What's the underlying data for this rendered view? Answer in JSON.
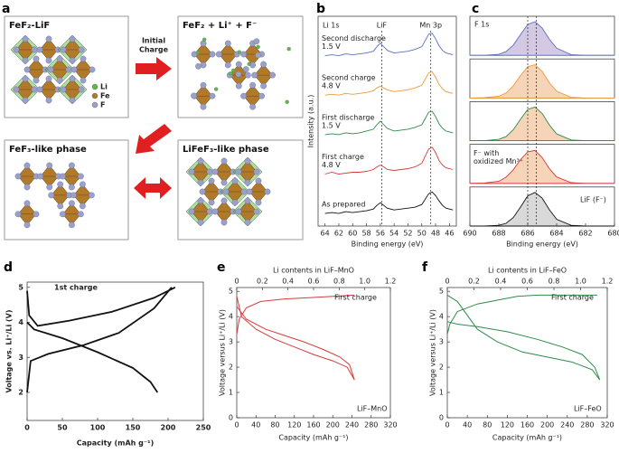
{
  "labels": [
    "a",
    "b",
    "c",
    "d",
    "e",
    "f"
  ],
  "panel_a": {
    "titles": [
      "FeF₂-LiF",
      "FeF₂ + Li⁺ + F⁻",
      "FeF₃-like phase",
      "LiFeF₃-like phase"
    ],
    "arrow_label": [
      "Initial",
      "Charge"
    ],
    "legend": [
      {
        "label": "Li",
        "color": "#5fb84a"
      },
      {
        "label": "Fe",
        "color": "#b07a2a"
      },
      {
        "label": "F",
        "color": "#9aa0c8"
      }
    ]
  },
  "chart_data": [
    {
      "type": "spectra",
      "title": "Li 1s",
      "xlabel": "Binding energy (eV)",
      "ylabel": "Intensity (a.u.)",
      "xlim": [
        65,
        45
      ],
      "xticks": [
        64,
        62,
        60,
        58,
        56,
        54,
        52,
        50,
        48,
        46
      ],
      "ylim": [
        0.3,
        12
      ],
      "annotations": [
        {
          "text": "LiF",
          "x": 55.8
        },
        {
          "text": "Mn 3p",
          "x": 48.7
        }
      ],
      "x": [
        64,
        63,
        62,
        61,
        60,
        59,
        58,
        57,
        56.5,
        56,
        55.5,
        55,
        54,
        53,
        52,
        51,
        50,
        49.5,
        49,
        48.5,
        48,
        47.5,
        47,
        46.5,
        46,
        45.5
      ],
      "series": [
        {
          "name": "As prepared",
          "color": "#111111",
          "values": [
            1.0,
            1.05,
            1.0,
            1.1,
            1.05,
            1.1,
            1.15,
            1.25,
            1.45,
            1.6,
            1.45,
            1.3,
            1.2,
            1.25,
            1.3,
            1.35,
            1.5,
            1.8,
            2.1,
            2.2,
            2.0,
            1.7,
            1.45,
            1.3,
            1.25,
            1.2
          ]
        },
        {
          "name": "First charge",
          "voltage": "4.8 V",
          "color": "#d83a3a",
          "values": [
            3.2,
            3.3,
            3.2,
            3.25,
            3.3,
            3.3,
            3.35,
            3.45,
            3.6,
            3.7,
            3.6,
            3.45,
            3.4,
            3.45,
            3.5,
            3.6,
            3.8,
            4.2,
            4.6,
            4.7,
            4.4,
            3.95,
            3.7,
            3.55,
            3.5,
            3.45
          ]
        },
        {
          "name": "First discharge",
          "voltage": "1.5 V",
          "color": "#2e8b4a",
          "values": [
            5.4,
            5.45,
            5.4,
            5.5,
            5.45,
            5.5,
            5.6,
            5.7,
            5.95,
            6.15,
            5.95,
            5.75,
            5.6,
            5.65,
            5.7,
            5.8,
            5.95,
            6.3,
            6.65,
            6.7,
            6.4,
            6.0,
            5.75,
            5.6,
            5.55,
            5.5
          ]
        },
        {
          "name": "Second charge",
          "voltage": "4.8 V",
          "color": "#ef9a3c",
          "values": [
            7.6,
            7.65,
            7.6,
            7.7,
            7.65,
            7.7,
            7.75,
            7.85,
            8.0,
            8.1,
            8.0,
            7.9,
            7.8,
            7.85,
            7.9,
            8.0,
            8.15,
            8.5,
            8.85,
            8.9,
            8.6,
            8.2,
            7.95,
            7.8,
            7.75,
            7.7
          ]
        },
        {
          "name": "Second discharge",
          "voltage": "1.5 V",
          "color": "#5a6fc0",
          "values": [
            9.8,
            9.85,
            9.8,
            9.9,
            9.85,
            9.9,
            9.95,
            10.05,
            10.3,
            10.5,
            10.3,
            10.1,
            9.95,
            10.0,
            10.05,
            10.15,
            10.3,
            10.65,
            11.0,
            11.05,
            10.75,
            10.35,
            10.1,
            9.95,
            9.9,
            9.85
          ]
        }
      ]
    },
    {
      "type": "peaks",
      "title": "F 1s",
      "xlabel": "Binding energy (eV)",
      "xlim": [
        690,
        680
      ],
      "xticks": [
        690,
        688,
        686,
        684,
        682,
        680
      ],
      "ylim": [
        0,
        1.15
      ],
      "guides": [
        686.0,
        685.4
      ],
      "annotations": [
        [
          "F⁻ with",
          "oxidized Mn³⁺"
        ],
        [
          "LiF (F⁻)"
        ]
      ],
      "x": [
        690,
        689,
        688,
        687.5,
        687,
        686.5,
        686,
        685.5,
        685,
        684.5,
        684,
        683,
        682,
        681,
        680
      ],
      "series": [
        {
          "color": "#5a6fc0",
          "fill": "#d3c9e2",
          "values": [
            0,
            0,
            0.03,
            0.11,
            0.3,
            0.61,
            0.91,
            0.99,
            0.8,
            0.47,
            0.21,
            0.02,
            0,
            0,
            0
          ]
        },
        {
          "color": "#ef9a3c",
          "fill": "#f6d4b8",
          "values": [
            0,
            0.01,
            0.05,
            0.15,
            0.36,
            0.66,
            0.92,
            0.98,
            0.78,
            0.45,
            0.2,
            0.02,
            0,
            0,
            0
          ]
        },
        {
          "color": "#2e8b4a",
          "fill": "#f6d4b8",
          "values": [
            0,
            0,
            0.04,
            0.12,
            0.32,
            0.63,
            0.92,
            0.99,
            0.8,
            0.46,
            0.2,
            0.02,
            0,
            0,
            0
          ]
        },
        {
          "color": "#d83a3a",
          "fill": "#f6d4b8",
          "values": [
            0,
            0.01,
            0.06,
            0.18,
            0.4,
            0.7,
            0.93,
            0.97,
            0.76,
            0.43,
            0.19,
            0.02,
            0,
            0,
            0
          ]
        },
        {
          "color": "#111111",
          "fill": "#d9d9d9",
          "values": [
            0,
            0,
            0.02,
            0.08,
            0.25,
            0.56,
            0.89,
            0.99,
            0.82,
            0.48,
            0.2,
            0.02,
            0,
            0,
            0
          ]
        }
      ]
    },
    {
      "type": "line",
      "xlabel": "Capacity (mAh g⁻¹)",
      "ylabel": "Voltage vs. Li⁺/Li (V)",
      "xlim": [
        0,
        250
      ],
      "xticks": [
        0,
        50,
        100,
        150,
        200,
        250
      ],
      "ylim": [
        1.2,
        5.15
      ],
      "yticks": [
        2,
        3,
        4,
        5
      ],
      "annotations": [
        "1st charge"
      ],
      "series": [
        {
          "color": "#111111",
          "x": [
            0,
            3,
            15,
            60,
            120,
            180,
            210
          ],
          "values": [
            4.9,
            4.2,
            3.9,
            4.05,
            4.3,
            4.7,
            5.0
          ]
        },
        {
          "color": "#111111",
          "x": [
            0,
            10,
            50,
            100,
            150,
            175,
            185
          ],
          "values": [
            4.0,
            3.8,
            3.55,
            3.15,
            2.7,
            2.3,
            2.0
          ]
        },
        {
          "color": "#111111",
          "x": [
            0,
            5,
            30,
            80,
            130,
            180,
            205
          ],
          "values": [
            2.0,
            2.9,
            3.1,
            3.35,
            3.7,
            4.4,
            5.0
          ]
        }
      ]
    },
    {
      "type": "line",
      "xlabel": "Capacity (mAh g⁻¹)",
      "x2label": "Li contents in LiF–MnO",
      "ylabel": "Voltage versus Li⁺/Li (V)",
      "xlim": [
        0,
        320
      ],
      "xticks": [
        0,
        40,
        80,
        120,
        160,
        200,
        240,
        280,
        320
      ],
      "x2lim": [
        0,
        1.2
      ],
      "x2ticks": [
        0,
        0.2,
        0.4,
        0.6,
        0.8,
        {
          "value": 1,
          "label": "1.0"
        },
        1.2
      ],
      "ylim": [
        0,
        5.15
      ],
      "yticks": [
        0,
        1,
        2,
        3,
        4,
        5
      ],
      "annotations": [
        "First charge",
        "LiF–MnO"
      ],
      "series": [
        {
          "color": "#d83a3a",
          "x": [
            0,
            5,
            20,
            50,
            100,
            150,
            200,
            245
          ],
          "values": [
            3.3,
            3.9,
            4.35,
            4.6,
            4.7,
            4.75,
            4.8,
            4.85
          ]
        },
        {
          "color": "#d83a3a",
          "x": [
            0,
            10,
            40,
            80,
            120,
            160,
            200,
            230,
            245
          ],
          "values": [
            4.8,
            4.0,
            3.5,
            3.1,
            2.8,
            2.5,
            2.25,
            2.0,
            1.5
          ]
        },
        {
          "color": "#d83a3a",
          "x": [
            245,
            235,
            215,
            180,
            140,
            100,
            60,
            20,
            0
          ],
          "values": [
            1.5,
            2.1,
            2.4,
            2.7,
            3.0,
            3.25,
            3.5,
            3.9,
            4.4
          ]
        }
      ]
    },
    {
      "type": "line",
      "xlabel": "Capacity (mAh g⁻¹)",
      "x2label": "Li contents in LiF–FeO",
      "ylabel": "Voltage versus Li⁺/Li (V)",
      "xlim": [
        0,
        320
      ],
      "xticks": [
        0,
        40,
        80,
        120,
        160,
        200,
        240,
        280,
        320
      ],
      "x2lim": [
        0,
        1.2
      ],
      "x2ticks": [
        0,
        0.2,
        0.4,
        0.6,
        0.8,
        {
          "value": 1,
          "label": "1.0"
        },
        1.2
      ],
      "ylim": [
        0,
        5.15
      ],
      "yticks": [
        0,
        1,
        2,
        3,
        4,
        5
      ],
      "annotations": [
        "First charge",
        "LiF–FeO"
      ],
      "series": [
        {
          "color": "#2e8b4a",
          "x": [
            0,
            5,
            20,
            60,
            100,
            140,
            180,
            240,
            300
          ],
          "values": [
            3.3,
            3.7,
            4.2,
            4.5,
            4.65,
            4.8,
            4.85,
            4.85,
            4.85
          ]
        },
        {
          "color": "#2e8b4a",
          "x": [
            0,
            20,
            60,
            100,
            150,
            200,
            250,
            290,
            305
          ],
          "values": [
            4.85,
            4.6,
            3.5,
            3.0,
            2.6,
            2.4,
            2.2,
            1.9,
            1.5
          ]
        },
        {
          "color": "#2e8b4a",
          "x": [
            305,
            295,
            270,
            230,
            180,
            120,
            60,
            20,
            0
          ],
          "values": [
            1.5,
            2.0,
            2.5,
            2.8,
            3.1,
            3.4,
            3.6,
            3.7,
            3.8
          ]
        }
      ]
    }
  ]
}
